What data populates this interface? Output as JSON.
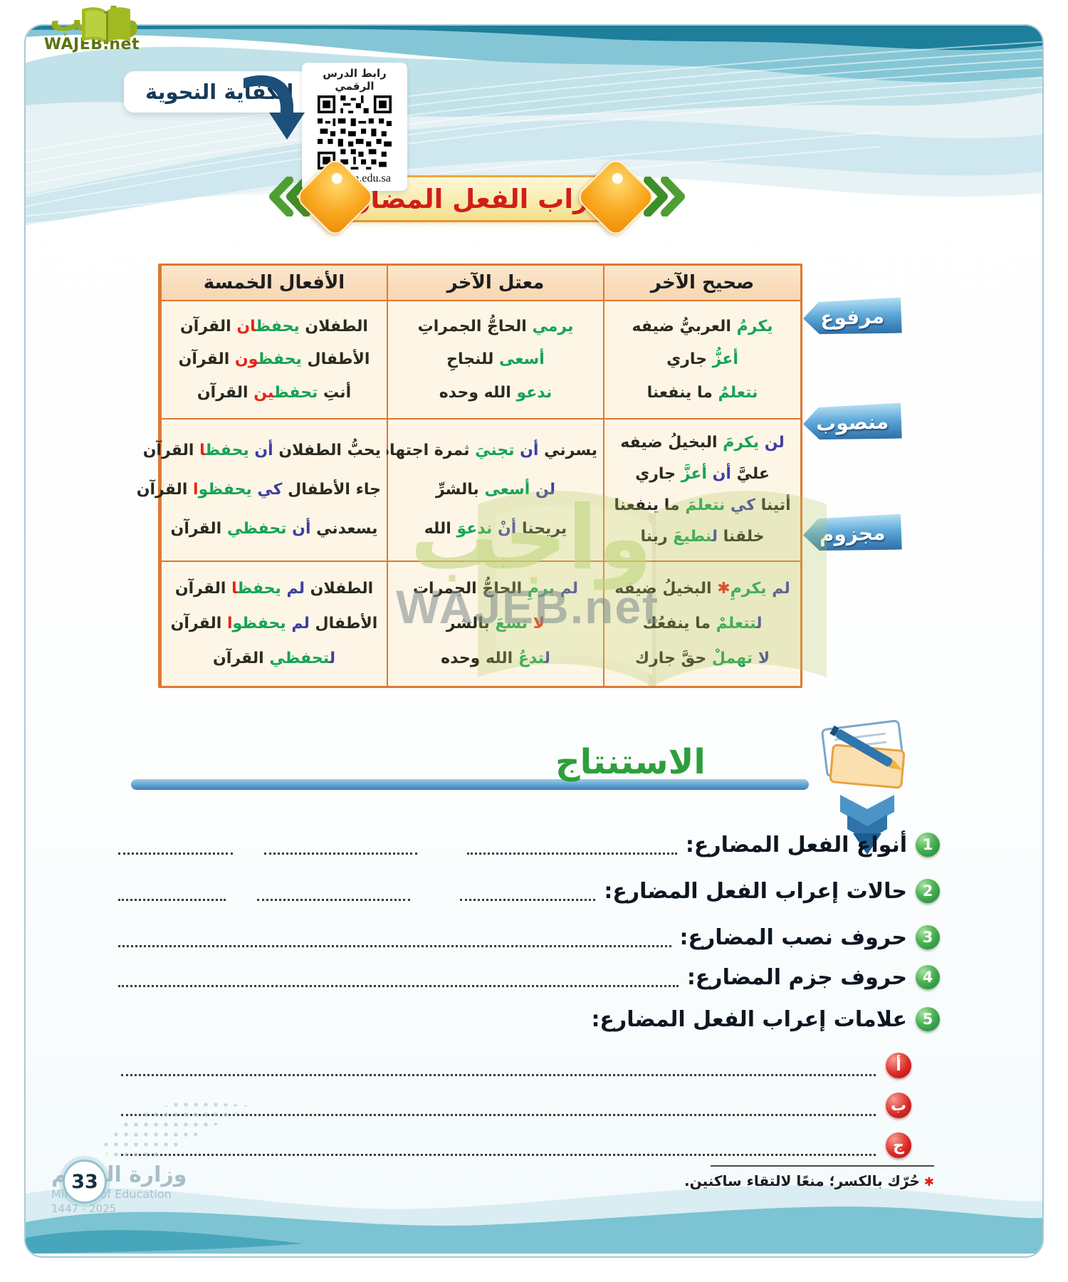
{
  "logo": {
    "arabic": "واجب",
    "domain": "WAJEB.net"
  },
  "header": {
    "competency_label": "الكفاية النحوية",
    "qr_caption": "رابط الدرس الرقمي",
    "qr_url": "www.ien.edu.sa"
  },
  "banner": {
    "title": "إعراب الفعل المضارع"
  },
  "table": {
    "columns": [
      "صحيح الآخر",
      "معتل الآخر",
      "الأفعال الخمسة"
    ],
    "row_labels": [
      "مرفوع",
      "منصوب",
      "مجزوم"
    ],
    "rows": [
      {
        "label": "مرفوع",
        "cells": [
          {
            "lines": [
              [
                {
                  "t": "يكرمُ",
                  "c": "g"
                },
                {
                  "t": " العربيُّ ضيفه",
                  "c": "d"
                }
              ],
              [
                {
                  "t": "أعزُّ",
                  "c": "g"
                },
                {
                  "t": " جاري",
                  "c": "d"
                }
              ],
              [
                {
                  "t": "نتعلمُ",
                  "c": "g"
                },
                {
                  "t": " ما ينفعنا",
                  "c": "d"
                }
              ]
            ]
          },
          {
            "lines": [
              [
                {
                  "t": "يرمي",
                  "c": "g"
                },
                {
                  "t": " الحاجُّ الجمراتِ",
                  "c": "d"
                }
              ],
              [
                {
                  "t": "أسعى",
                  "c": "g"
                },
                {
                  "t": " للنجاحِ",
                  "c": "d"
                }
              ],
              [
                {
                  "t": "ندعو",
                  "c": "g"
                },
                {
                  "t": " الله وحده",
                  "c": "d"
                }
              ]
            ]
          },
          {
            "lines": [
              [
                {
                  "t": "الطفلان ",
                  "c": "d"
                },
                {
                  "t": "يحفظ",
                  "c": "g"
                },
                {
                  "t": "ان",
                  "c": "r"
                },
                {
                  "t": " القرآن",
                  "c": "d"
                }
              ],
              [
                {
                  "t": "الأطفال ",
                  "c": "d"
                },
                {
                  "t": "يحفظ",
                  "c": "g"
                },
                {
                  "t": "ون",
                  "c": "r"
                },
                {
                  "t": " القرآن",
                  "c": "d"
                }
              ],
              [
                {
                  "t": "أنتِ ",
                  "c": "d"
                },
                {
                  "t": "تحفظ",
                  "c": "g"
                },
                {
                  "t": "ين",
                  "c": "r"
                },
                {
                  "t": " القرآن",
                  "c": "d"
                }
              ]
            ]
          }
        ]
      },
      {
        "label": "منصوب",
        "cells": [
          {
            "lines": [
              [
                {
                  "t": "لن",
                  "c": "b"
                },
                {
                  "t": " يكرمَ",
                  "c": "g"
                },
                {
                  "t": " البخيلُ ضيفه",
                  "c": "d"
                }
              ],
              [
                {
                  "t": "عليَّ ",
                  "c": "d"
                },
                {
                  "t": "أن",
                  "c": "b"
                },
                {
                  "t": " أعزَّ",
                  "c": "g"
                },
                {
                  "t": " جاري",
                  "c": "d"
                }
              ],
              [
                {
                  "t": "أتينا ",
                  "c": "d"
                },
                {
                  "t": "كي",
                  "c": "b"
                },
                {
                  "t": " نتعلمَ",
                  "c": "g"
                },
                {
                  "t": " ما ينفعنا",
                  "c": "d"
                }
              ],
              [
                {
                  "t": "خلقنا ",
                  "c": "d"
                },
                {
                  "t": "ل",
                  "c": "b"
                },
                {
                  "t": "نطيعَ",
                  "c": "g"
                },
                {
                  "t": " ربنا",
                  "c": "d"
                }
              ]
            ]
          },
          {
            "lines": [
              [
                {
                  "t": "يسرني ",
                  "c": "d"
                },
                {
                  "t": "أن",
                  "c": "b"
                },
                {
                  "t": " تجنيَ",
                  "c": "g"
                },
                {
                  "t": " ثمرة اجتهادك",
                  "c": "d"
                }
              ],
              [
                {
                  "t": "لن",
                  "c": "b"
                },
                {
                  "t": " أسعى",
                  "c": "g"
                },
                {
                  "t": " بالشرِّ",
                  "c": "d"
                }
              ],
              [
                {
                  "t": "يريحنا ",
                  "c": "d"
                },
                {
                  "t": "أنْ",
                  "c": "b"
                },
                {
                  "t": " ندعوَ",
                  "c": "g"
                },
                {
                  "t": " الله",
                  "c": "d"
                }
              ]
            ]
          },
          {
            "lines": [
              [
                {
                  "t": "يحبُّ الطفلان ",
                  "c": "d"
                },
                {
                  "t": "أن",
                  "c": "b"
                },
                {
                  "t": " يحفظ",
                  "c": "g"
                },
                {
                  "t": "ا",
                  "c": "r"
                },
                {
                  "t": " القرآن",
                  "c": "d"
                }
              ],
              [
                {
                  "t": "جاء الأطفال ",
                  "c": "d"
                },
                {
                  "t": "كي",
                  "c": "b"
                },
                {
                  "t": " يحفظو",
                  "c": "g"
                },
                {
                  "t": "ا",
                  "c": "r"
                },
                {
                  "t": " القرآن",
                  "c": "d"
                }
              ],
              [
                {
                  "t": "يسعدني ",
                  "c": "d"
                },
                {
                  "t": "أن",
                  "c": "b"
                },
                {
                  "t": " تحفظي",
                  "c": "g"
                },
                {
                  "t": " القرآن",
                  "c": "d"
                }
              ]
            ]
          }
        ]
      },
      {
        "label": "مجزوم",
        "cells": [
          {
            "lines": [
              [
                {
                  "t": "لم",
                  "c": "b"
                },
                {
                  "t": " يكرمِ",
                  "c": "g"
                },
                {
                  "t": "✱",
                  "c": "r"
                },
                {
                  "t": " البخيلُ ضيفه",
                  "c": "d"
                }
              ],
              [
                {
                  "t": "ل",
                  "c": "b"
                },
                {
                  "t": "تتعلمْ",
                  "c": "g"
                },
                {
                  "t": " ما ينفعُك",
                  "c": "d"
                }
              ],
              [
                {
                  "t": "لا",
                  "c": "b"
                },
                {
                  "t": " تهملْ",
                  "c": "g"
                },
                {
                  "t": " حقَّ جارك",
                  "c": "d"
                }
              ]
            ]
          },
          {
            "lines": [
              [
                {
                  "t": "لم",
                  "c": "b"
                },
                {
                  "t": " يرمِ",
                  "c": "g"
                },
                {
                  "t": " الحاجُّ الجمرات",
                  "c": "d"
                }
              ],
              [
                {
                  "t": "لا",
                  "c": "r"
                },
                {
                  "t": " تسعَ",
                  "c": "g"
                },
                {
                  "t": " بالشر",
                  "c": "d"
                }
              ],
              [
                {
                  "t": "ل",
                  "c": "b"
                },
                {
                  "t": "تدعُ",
                  "c": "g"
                },
                {
                  "t": " الله وحده",
                  "c": "d"
                }
              ]
            ]
          },
          {
            "lines": [
              [
                {
                  "t": "الطفلان ",
                  "c": "d"
                },
                {
                  "t": "لم",
                  "c": "b"
                },
                {
                  "t": " يحفظ",
                  "c": "g"
                },
                {
                  "t": "ا",
                  "c": "r"
                },
                {
                  "t": " القرآن",
                  "c": "d"
                }
              ],
              [
                {
                  "t": "الأطفال ",
                  "c": "d"
                },
                {
                  "t": "لم",
                  "c": "b"
                },
                {
                  "t": " يحفظو",
                  "c": "g"
                },
                {
                  "t": "ا",
                  "c": "r"
                },
                {
                  "t": " القرآن",
                  "c": "d"
                }
              ],
              [
                {
                  "t": "ل",
                  "c": "b"
                },
                {
                  "t": "تحفظي",
                  "c": "g"
                },
                {
                  "t": " القرآن",
                  "c": "d"
                }
              ]
            ]
          }
        ]
      }
    ]
  },
  "watermark": {
    "arabic": "واجب",
    "domain": "WAJEB.net"
  },
  "conclusion": {
    "heading": "الاستنتاج",
    "items": [
      {
        "num": "1",
        "label": "أنواع الفعل المضارع:"
      },
      {
        "num": "2",
        "label": "حالات إعراب الفعل المضارع:"
      },
      {
        "num": "3",
        "label": "حروف نصب المضارع:"
      },
      {
        "num": "4",
        "label": "حروف جزم المضارع:"
      },
      {
        "num": "5",
        "label": "علامات إعراب الفعل المضارع:"
      }
    ],
    "subitems": [
      {
        "letter": "أ"
      },
      {
        "letter": "ب"
      },
      {
        "letter": "ج"
      }
    ]
  },
  "footnote": {
    "marker": "✱",
    "text": "حُرّك بالكسر؛ منعًا لالتقاء ساكنين."
  },
  "footer": {
    "page_number": "33",
    "ministry_ar": "وزارة التعليم",
    "ministry_en": "Ministry of Education",
    "edition": "2025 - 1447"
  }
}
